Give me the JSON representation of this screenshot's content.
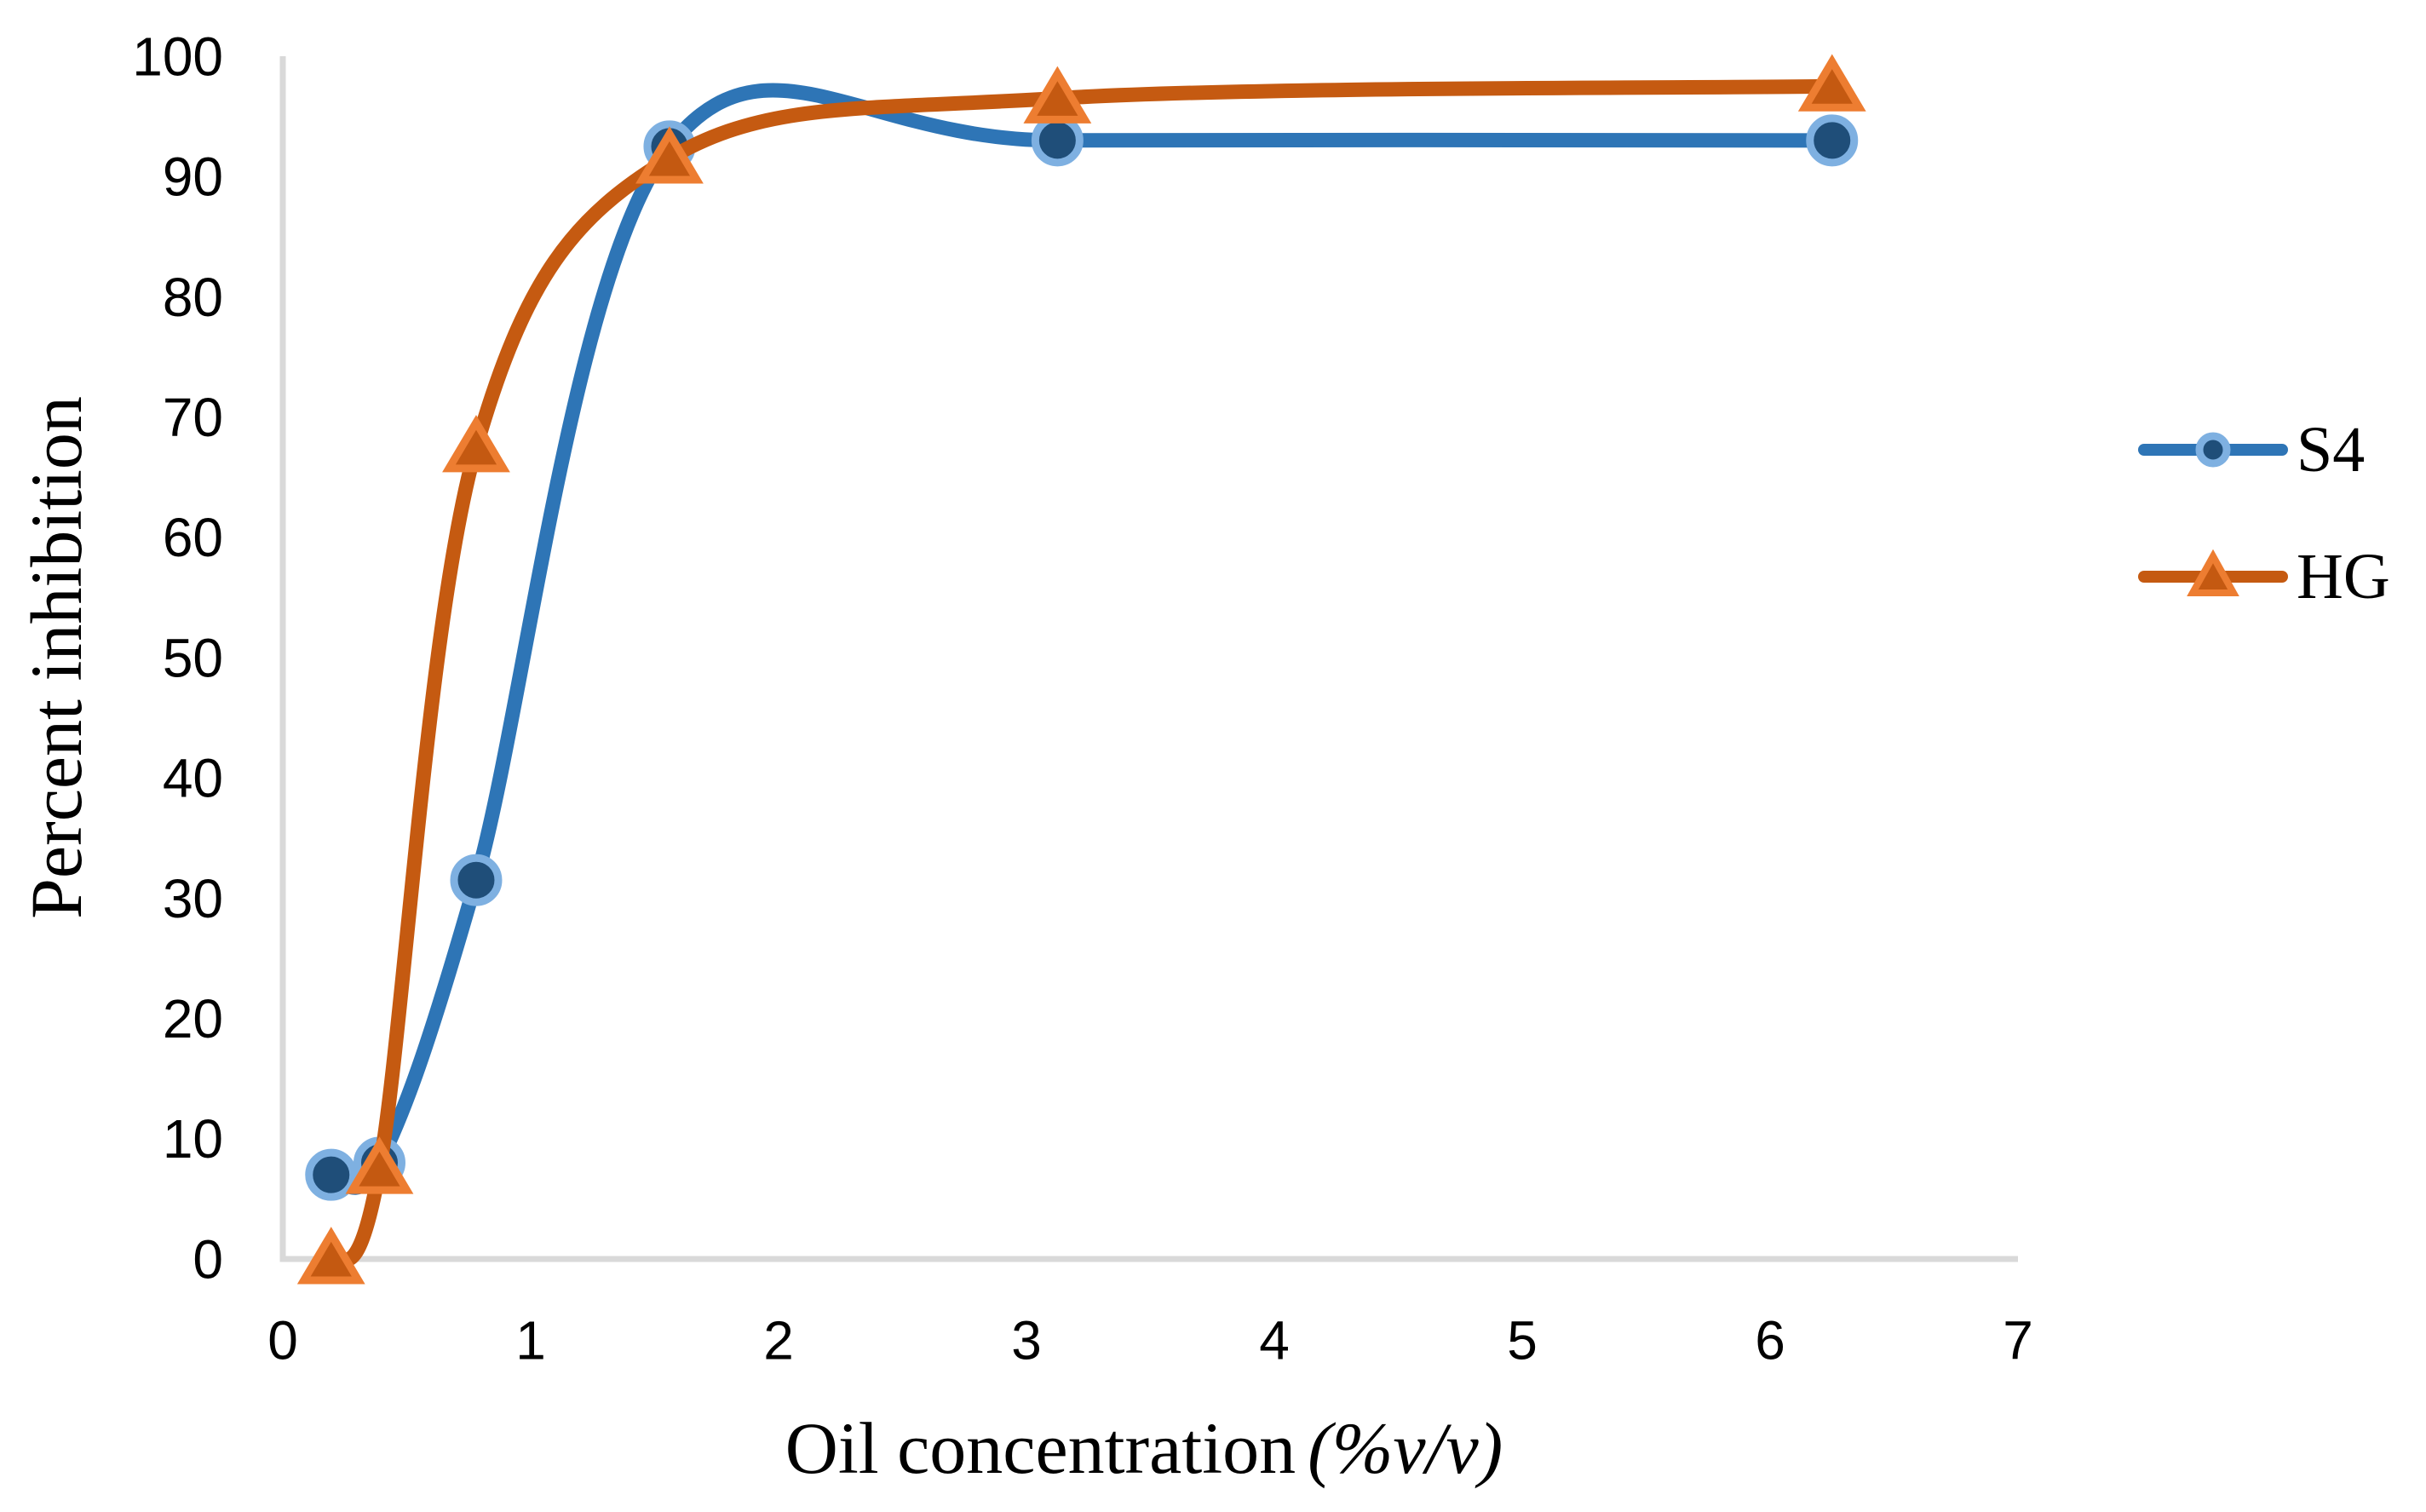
{
  "figure": {
    "background_color": "#ffffff",
    "axis_line_color": "#D9D9D9",
    "text_color": "#000000"
  },
  "chart_data": {
    "type": "line",
    "smooth": true,
    "grid": false,
    "xlabel": "Oil concentration",
    "xlabel_unit_italic": "(%v/v)",
    "ylabel": "Percent inhibition",
    "xlim": [
      0,
      7
    ],
    "ylim": [
      0,
      100
    ],
    "x_ticks": [
      0,
      1,
      2,
      3,
      4,
      5,
      6,
      7
    ],
    "y_ticks": [
      0,
      10,
      20,
      30,
      40,
      50,
      60,
      70,
      80,
      90,
      100
    ],
    "legend_position": "right",
    "x": [
      0.195,
      0.39,
      0.78,
      1.56,
      3.125,
      6.25
    ],
    "series": [
      {
        "name": "S4",
        "marker": "circle",
        "line_color": "#2E75B6",
        "marker_fill": "#1F4E79",
        "marker_stroke": "#7EB0E1",
        "values": [
          7,
          8,
          31.5,
          92.5,
          93,
          93
        ]
      },
      {
        "name": "HG",
        "marker": "triangle",
        "line_color": "#C55A11",
        "marker_fill": "#C45911",
        "marker_stroke": "#ED7D31",
        "values": [
          0,
          7.5,
          67.5,
          91.5,
          96.5,
          97.5
        ]
      }
    ]
  }
}
